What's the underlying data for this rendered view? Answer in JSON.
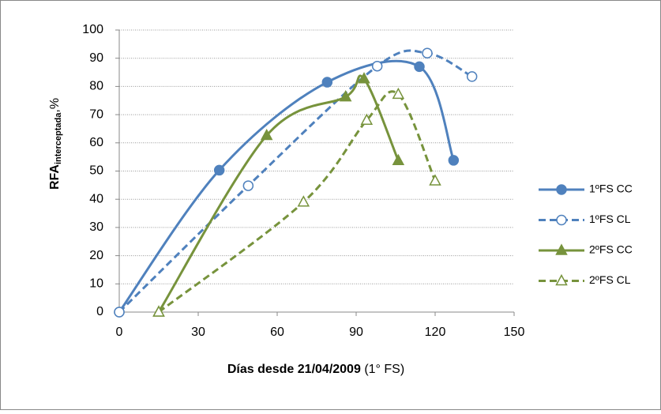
{
  "chart_data": {
    "type": "scatter-smooth",
    "x_label": {
      "bold": "Días desde 21/04/2009",
      "normal": "(1° FS)"
    },
    "y_label": {
      "main": "RFA",
      "sub": "interceptada",
      "suffix": ",%"
    },
    "xlim": [
      0,
      150
    ],
    "xticks": [
      0,
      30,
      60,
      90,
      120,
      150
    ],
    "ylim": [
      0,
      100
    ],
    "yticks": [
      0,
      10,
      20,
      30,
      40,
      50,
      60,
      70,
      80,
      90,
      100
    ],
    "grid": true,
    "legend": "right",
    "series": [
      {
        "name": "1ºFS  CC",
        "color": "#4f81bd",
        "line_style": "solid",
        "marker": "circle",
        "marker_fill": "filled",
        "x": [
          0,
          38,
          79,
          114,
          127
        ],
        "values": [
          0,
          50.3,
          81.5,
          87,
          53.8
        ]
      },
      {
        "name": "1ºFS  CL",
        "color": "#4f81bd",
        "line_style": "dashed",
        "marker": "circle",
        "marker_fill": "open",
        "x": [
          0,
          49,
          98,
          117,
          134
        ],
        "values": [
          0,
          44.8,
          87.2,
          91.8,
          83.5
        ]
      },
      {
        "name": "2ºFS  CC",
        "color": "#77933c",
        "line_style": "solid",
        "marker": "triangle",
        "marker_fill": "filled",
        "x": [
          15,
          56,
          86,
          93,
          106
        ],
        "values": [
          0,
          62.6,
          76.3,
          82.7,
          53.7
        ]
      },
      {
        "name": "2ºFS  CL",
        "color": "#77933c",
        "line_style": "dashed",
        "marker": "triangle",
        "marker_fill": "open",
        "x": [
          15,
          70,
          94,
          106,
          120
        ],
        "values": [
          0,
          39,
          68,
          77.2,
          46.5
        ]
      }
    ]
  }
}
